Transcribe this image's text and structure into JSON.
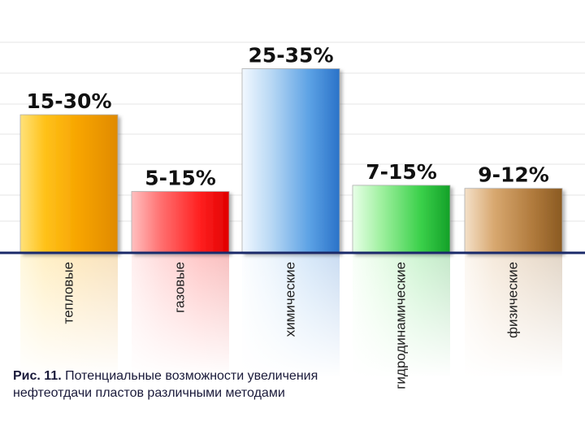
{
  "chart_data": {
    "type": "bar",
    "categories": [
      "тепловые",
      "газовые",
      "химические",
      "гидродинамические",
      "физические"
    ],
    "ranges": [
      "15-30%",
      "5-15%",
      "25-35%",
      "7-15%",
      "9-12%"
    ],
    "values": [
      22.5,
      10,
      30,
      11,
      10.5
    ],
    "colors": [
      "#f7a400",
      "#ee1c24",
      "#3a8fe0",
      "#22c03a",
      "#a86a2a"
    ],
    "unit": "%",
    "grid": true,
    "legend": "none"
  },
  "caption": {
    "label": "Рис. 11.",
    "text": "Потенциальные возможности увеличения нефтеотдачи пластов различными методами"
  }
}
